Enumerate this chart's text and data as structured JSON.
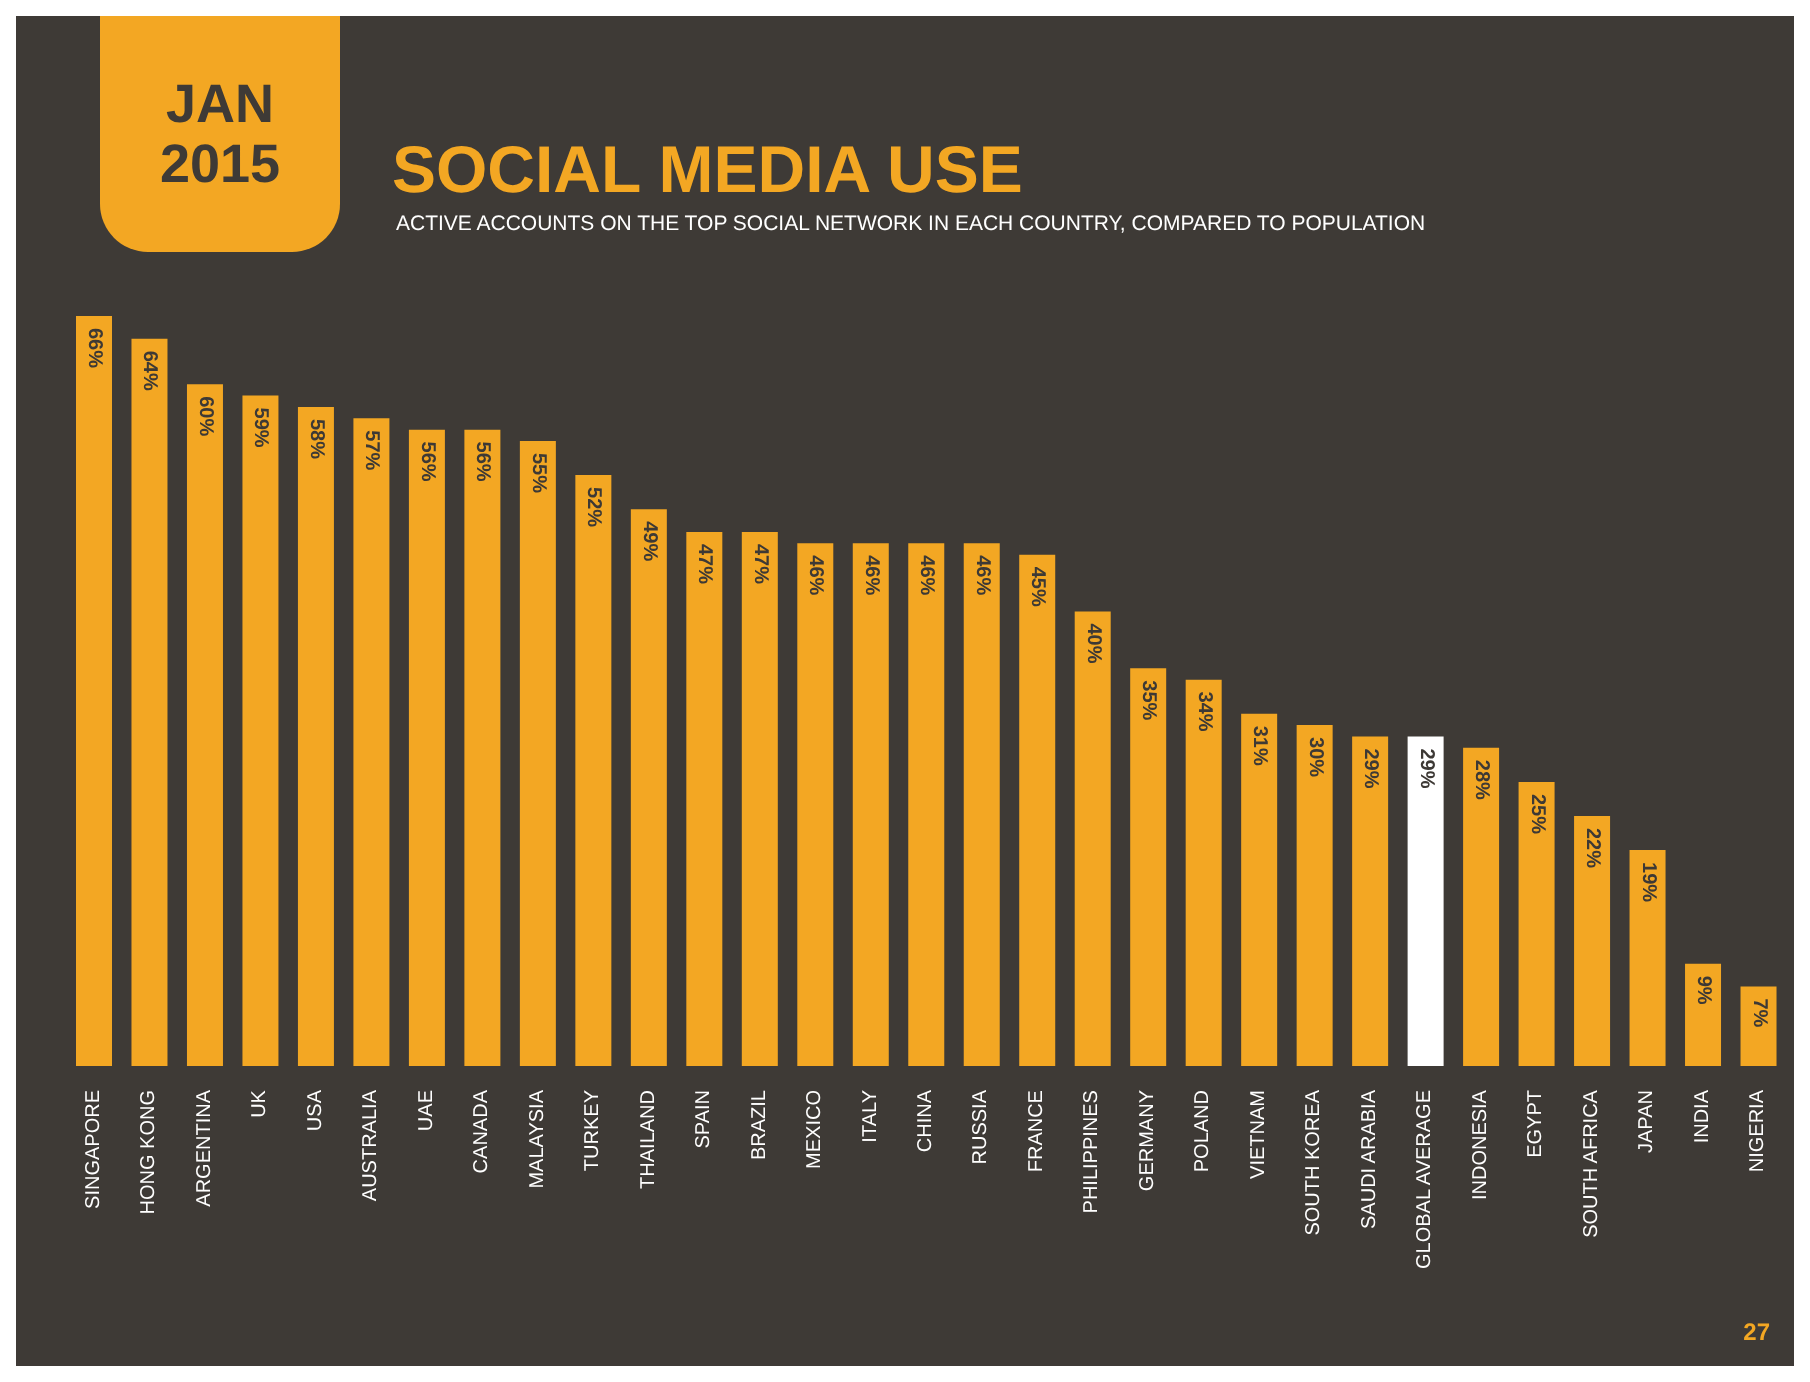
{
  "chart_data": {
    "type": "bar",
    "title": "SOCIAL MEDIA USE",
    "subtitle": "ACTIVE ACCOUNTS ON THE TOP SOCIAL NETWORK IN EACH COUNTRY, COMPARED TO POPULATION",
    "annotations": [
      "JAN 2015",
      "27"
    ],
    "categories": [
      "SINGAPORE",
      "HONG KONG",
      "ARGENTINA",
      "UK",
      "USA",
      "AUSTRALIA",
      "UAE",
      "CANADA",
      "MALAYSIA",
      "TURKEY",
      "THAILAND",
      "SPAIN",
      "BRAZIL",
      "MEXICO",
      "ITALY",
      "CHINA",
      "RUSSIA",
      "FRANCE",
      "PHILIPPINES",
      "GERMANY",
      "POLAND",
      "VIETNAM",
      "SOUTH KOREA",
      "SAUDI ARABIA",
      "GLOBAL AVERAGE",
      "INDONESIA",
      "EGYPT",
      "SOUTH AFRICA",
      "JAPAN",
      "INDIA",
      "NIGERIA"
    ],
    "values": [
      66,
      64,
      60,
      59,
      58,
      57,
      56,
      56,
      55,
      52,
      49,
      47,
      47,
      46,
      46,
      46,
      46,
      45,
      40,
      35,
      34,
      31,
      30,
      29,
      29,
      28,
      25,
      22,
      19,
      9,
      7
    ],
    "value_labels": [
      "66%",
      "64%",
      "60%",
      "59%",
      "58%",
      "57%",
      "56%",
      "56%",
      "55%",
      "52%",
      "49%",
      "47%",
      "47%",
      "46%",
      "46%",
      "46%",
      "46%",
      "45%",
      "40%",
      "35%",
      "34%",
      "31%",
      "30%",
      "29%",
      "29%",
      "28%",
      "25%",
      "22%",
      "19%",
      "9%",
      "7%"
    ],
    "colors": [
      "#f3a723",
      "#f3a723",
      "#f3a723",
      "#f3a723",
      "#f3a723",
      "#f3a723",
      "#f3a723",
      "#f3a723",
      "#f3a723",
      "#f3a723",
      "#f3a723",
      "#f3a723",
      "#f3a723",
      "#f3a723",
      "#f3a723",
      "#f3a723",
      "#f3a723",
      "#f3a723",
      "#f3a723",
      "#f3a723",
      "#f3a723",
      "#f3a723",
      "#f3a723",
      "#f3a723",
      "#ffffff",
      "#f3a723",
      "#f3a723",
      "#f3a723",
      "#f3a723",
      "#f3a723",
      "#f3a723"
    ],
    "grid": false,
    "legend": false
  }
}
